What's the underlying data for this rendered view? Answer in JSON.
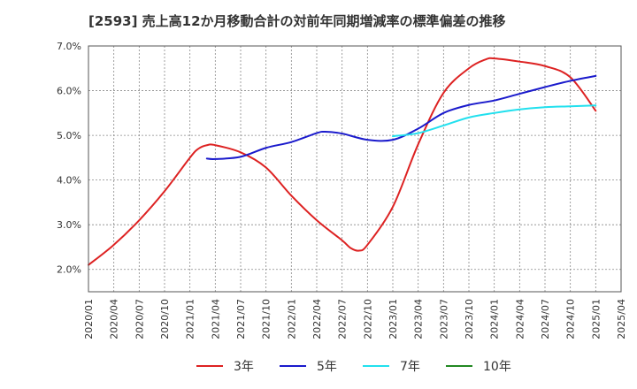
{
  "chart_data": {
    "type": "line",
    "title": "[2593]  売上高12か月移動合計の対前年同期増減率の標準偏差の推移",
    "xlabel": "",
    "ylabel": "",
    "ylim": [
      1.5,
      7.0
    ],
    "y_ticks": [
      2.0,
      3.0,
      4.0,
      5.0,
      6.0,
      7.0
    ],
    "y_tick_labels": [
      "2.0%",
      "3.0%",
      "4.0%",
      "5.0%",
      "6.0%",
      "7.0%"
    ],
    "x_tick_labels": [
      "2020/01",
      "2020/04",
      "2020/07",
      "2020/10",
      "2021/01",
      "2021/04",
      "2021/07",
      "2021/10",
      "2022/01",
      "2022/04",
      "2022/07",
      "2022/10",
      "2023/01",
      "2023/04",
      "2023/07",
      "2023/10",
      "2024/01",
      "2024/04",
      "2024/07",
      "2024/10",
      "2025/01",
      "2025/04"
    ],
    "grid": true,
    "legend_position": "bottom",
    "series": [
      {
        "name": "3年",
        "color": "#dd2222",
        "points": [
          [
            "2020/01",
            2.1
          ],
          [
            "2020/04",
            2.55
          ],
          [
            "2020/07",
            3.1
          ],
          [
            "2020/10",
            3.75
          ],
          [
            "2021/01",
            4.5
          ],
          [
            "2021/02",
            4.7
          ],
          [
            "2021/03",
            4.78
          ],
          [
            "2021/04",
            4.78
          ],
          [
            "2021/07",
            4.62
          ],
          [
            "2021/10",
            4.28
          ],
          [
            "2022/01",
            3.65
          ],
          [
            "2022/04",
            3.1
          ],
          [
            "2022/07",
            2.65
          ],
          [
            "2022/08",
            2.48
          ],
          [
            "2022/09",
            2.42
          ],
          [
            "2022/10",
            2.55
          ],
          [
            "2023/01",
            3.4
          ],
          [
            "2023/04",
            4.8
          ],
          [
            "2023/07",
            5.95
          ],
          [
            "2023/10",
            6.5
          ],
          [
            "2023/12",
            6.7
          ],
          [
            "2024/01",
            6.72
          ],
          [
            "2024/04",
            6.65
          ],
          [
            "2024/07",
            6.55
          ],
          [
            "2024/10",
            6.3
          ],
          [
            "2025/01",
            5.55
          ]
        ]
      },
      {
        "name": "5年",
        "color": "#1a1acc",
        "points": [
          [
            "2021/03",
            4.48
          ],
          [
            "2021/04",
            4.47
          ],
          [
            "2021/07",
            4.52
          ],
          [
            "2021/10",
            4.72
          ],
          [
            "2022/01",
            4.85
          ],
          [
            "2022/04",
            5.05
          ],
          [
            "2022/05",
            5.08
          ],
          [
            "2022/07",
            5.04
          ],
          [
            "2022/10",
            4.9
          ],
          [
            "2023/01",
            4.9
          ],
          [
            "2023/04",
            5.15
          ],
          [
            "2023/07",
            5.5
          ],
          [
            "2023/10",
            5.68
          ],
          [
            "2024/01",
            5.78
          ],
          [
            "2024/04",
            5.93
          ],
          [
            "2024/07",
            6.08
          ],
          [
            "2024/10",
            6.22
          ],
          [
            "2025/01",
            6.33
          ]
        ]
      },
      {
        "name": "7年",
        "color": "#22e0ee",
        "points": [
          [
            "2023/01",
            4.98
          ],
          [
            "2023/04",
            5.05
          ],
          [
            "2023/07",
            5.22
          ],
          [
            "2023/10",
            5.4
          ],
          [
            "2024/01",
            5.5
          ],
          [
            "2024/04",
            5.58
          ],
          [
            "2024/07",
            5.63
          ],
          [
            "2024/10",
            5.65
          ],
          [
            "2025/01",
            5.67
          ]
        ]
      },
      {
        "name": "10年",
        "color": "#228822",
        "points": []
      }
    ]
  }
}
